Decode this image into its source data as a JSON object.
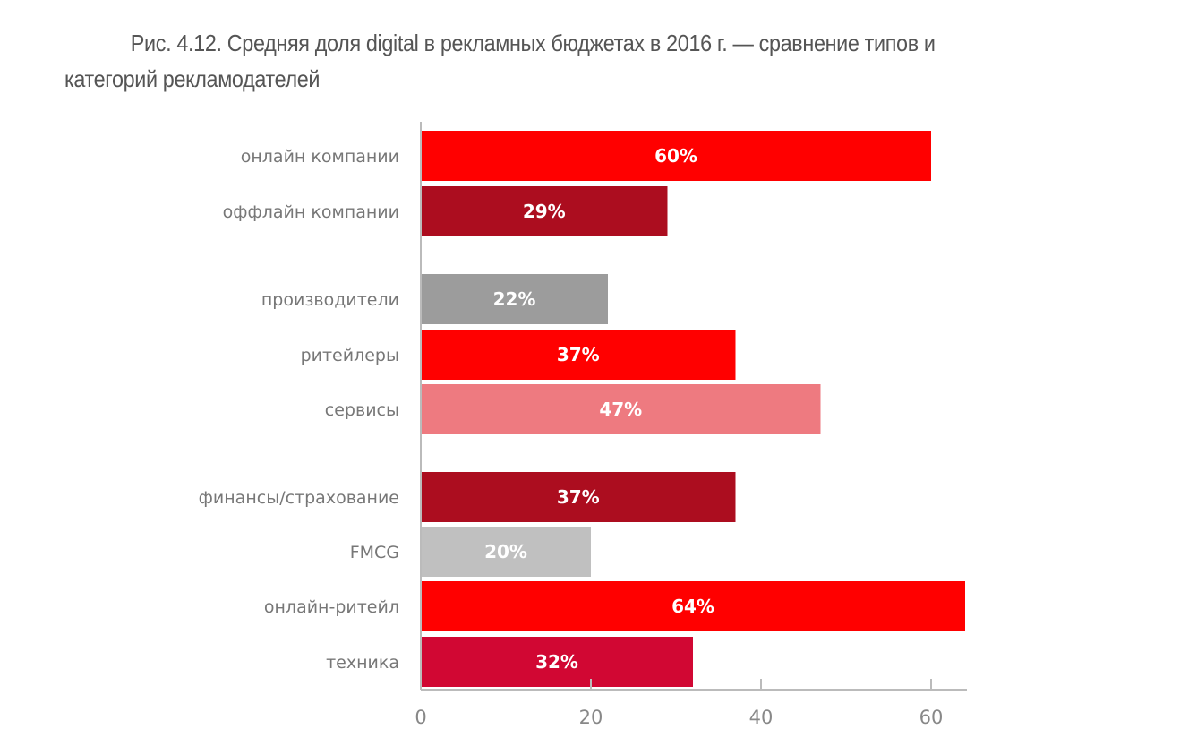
{
  "chart_data": {
    "type": "bar",
    "orientation": "horizontal",
    "title": "Рис. 4.12. Средняя доля digital в рекламных бюджетах в 2016 г. — сравнение типов и категорий рекламодателей",
    "categories": [
      "онлайн компании",
      "оффлайн компании",
      "производители",
      "ритейлеры",
      "сервисы",
      "финансы/страхование",
      "FMCG",
      "онлайн-ритейл",
      "техника"
    ],
    "values": [
      60,
      29,
      22,
      37,
      47,
      37,
      20,
      64,
      32
    ],
    "data_labels": [
      "60%",
      "29%",
      "22%",
      "37%",
      "47%",
      "37%",
      "20%",
      "64%",
      "32%"
    ],
    "groups": [
      [
        0,
        1
      ],
      [
        2,
        3,
        4
      ],
      [
        5,
        6,
        7,
        8
      ]
    ],
    "colors": [
      "#ff0000",
      "#ac0d1f",
      "#9c9c9c",
      "#ff0000",
      "#ee7a80",
      "#ac0d1f",
      "#c0c0c0",
      "#ff0000",
      "#d10733"
    ],
    "xlim": [
      0,
      64
    ],
    "xticks": [
      0,
      20,
      40,
      60
    ],
    "xlabel": "",
    "ylabel": "",
    "grid": false
  }
}
